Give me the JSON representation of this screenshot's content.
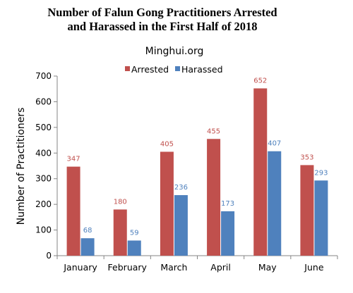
{
  "colors": {
    "arrested": "#c0504d",
    "harassed": "#4f81bd",
    "axis": "#868686"
  },
  "chart_data": {
    "type": "bar",
    "title_lines": [
      "Number of Falun Gong Practitioners Arrested",
      "and Harassed in the First Half of 2018"
    ],
    "subtitle": "Minghui.org",
    "xlabel": "",
    "ylabel": "Number  of Practitioners",
    "ylim": [
      0,
      700
    ],
    "yticks": [
      "0",
      "100",
      "200",
      "300",
      "400",
      "500",
      "600",
      "700"
    ],
    "categories": [
      "January",
      "February",
      "March",
      "April",
      "May",
      "June"
    ],
    "series": [
      {
        "name": "Arrested",
        "values": [
          347,
          180,
          405,
          455,
          652,
          353
        ]
      },
      {
        "name": "Harassed",
        "values": [
          68,
          59,
          236,
          173,
          407,
          293
        ]
      }
    ],
    "legend": "top-center",
    "grid": false
  }
}
